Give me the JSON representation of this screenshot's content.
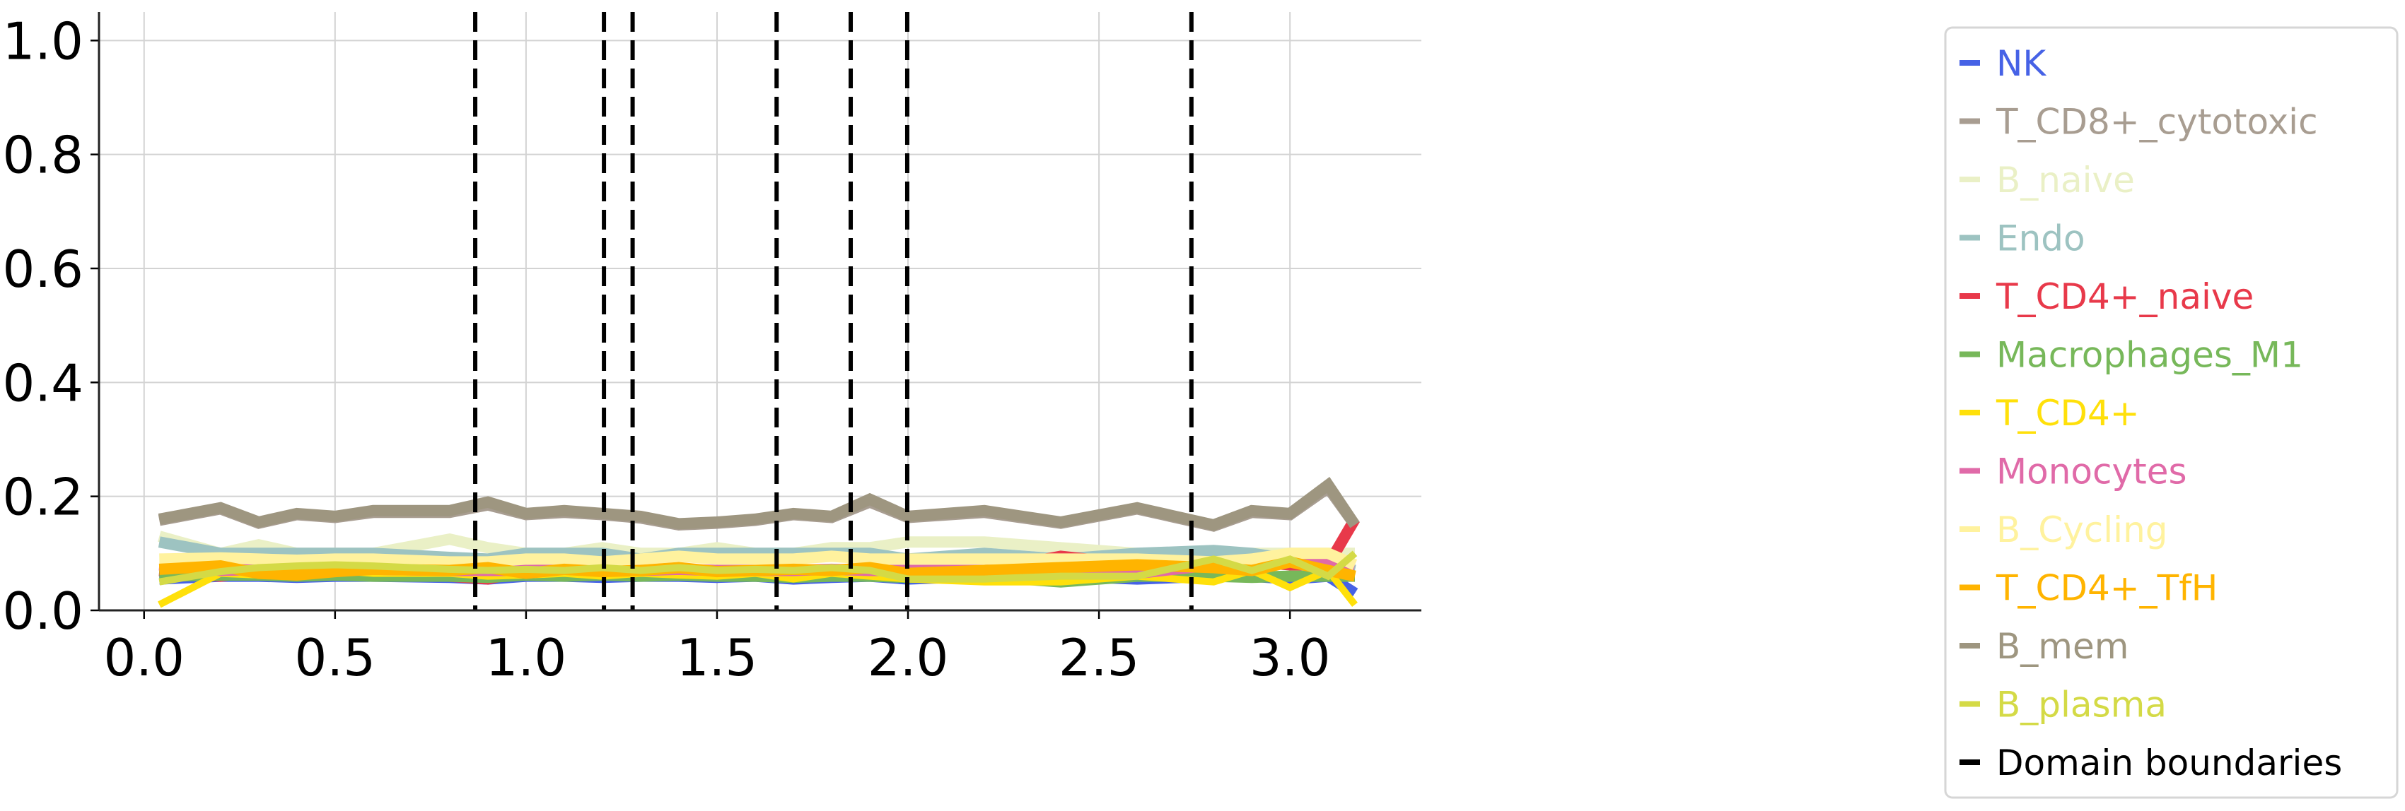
{
  "chart_data": {
    "type": "line",
    "title": "",
    "xlabel": "",
    "ylabel": "",
    "xlim": [
      -0.118,
      3.344
    ],
    "ylim": [
      0,
      1.05
    ],
    "grid": true,
    "legend_placement": "right, outside",
    "x_ticks": [
      "0.0",
      "0.5",
      "1.0",
      "1.5",
      "2.0",
      "2.5",
      "3.0"
    ],
    "y_ticks": [
      "0.0",
      "0.2",
      "0.4",
      "0.6",
      "0.8",
      "1.0"
    ],
    "x": [
      0.04,
      0.2,
      0.3,
      0.4,
      0.5,
      0.6,
      0.8,
      0.9,
      1.0,
      1.1,
      1.2,
      1.3,
      1.4,
      1.5,
      1.6,
      1.7,
      1.8,
      1.9,
      2.0,
      2.2,
      2.4,
      2.6,
      2.8,
      2.9,
      3.0,
      3.1,
      3.17
    ],
    "series": [
      {
        "name": "NK",
        "color": "#4662e6",
        "values": [
          0.055,
          0.06,
          0.06,
          0.058,
          0.06,
          0.06,
          0.058,
          0.055,
          0.06,
          0.06,
          0.058,
          0.06,
          0.06,
          0.058,
          0.06,
          0.055,
          0.058,
          0.06,
          0.055,
          0.06,
          0.06,
          0.055,
          0.06,
          0.06,
          0.055,
          0.06,
          0.03
        ]
      },
      {
        "name": "T_CD8+_cytotoxic",
        "color": "#a89d91",
        "values": [
          0.158,
          0.178,
          0.153,
          0.168,
          0.163,
          0.172,
          0.172,
          0.185,
          0.168,
          0.172,
          0.168,
          0.162,
          0.15,
          0.153,
          0.158,
          0.168,
          0.163,
          0.19,
          0.163,
          0.172,
          0.153,
          0.178,
          0.148,
          0.172,
          0.168,
          0.215,
          0.15
        ]
      },
      {
        "name": "B_naive",
        "color": "#eaf0c6",
        "values": [
          0.13,
          0.1,
          0.115,
          0.1,
          0.1,
          0.1,
          0.125,
          0.11,
          0.1,
          0.1,
          0.11,
          0.1,
          0.1,
          0.11,
          0.1,
          0.1,
          0.11,
          0.11,
          0.12,
          0.12,
          0.11,
          0.1,
          0.1,
          0.1,
          0.1,
          0.1,
          0.1
        ]
      },
      {
        "name": "Endo",
        "color": "#9dc3c1",
        "values": [
          0.12,
          0.1,
          0.1,
          0.1,
          0.1,
          0.1,
          0.093,
          0.09,
          0.1,
          0.1,
          0.1,
          0.09,
          0.1,
          0.1,
          0.1,
          0.1,
          0.1,
          0.1,
          0.09,
          0.1,
          0.09,
          0.1,
          0.105,
          0.1,
          0.09,
          0.08,
          0.07
        ]
      },
      {
        "name": "T_CD4+_naive",
        "color": "#e8394a",
        "values": [
          0.07,
          0.06,
          0.07,
          0.07,
          0.065,
          0.065,
          0.06,
          0.055,
          0.07,
          0.07,
          0.07,
          0.07,
          0.07,
          0.07,
          0.07,
          0.07,
          0.07,
          0.07,
          0.06,
          0.07,
          0.095,
          0.08,
          0.08,
          0.085,
          0.08,
          0.08,
          0.16
        ]
      },
      {
        "name": "Macrophages_M1",
        "color": "#77b85a",
        "values": [
          0.06,
          0.062,
          0.062,
          0.06,
          0.062,
          0.06,
          0.06,
          0.058,
          0.062,
          0.06,
          0.062,
          0.06,
          0.062,
          0.06,
          0.06,
          0.058,
          0.06,
          0.06,
          0.058,
          0.06,
          0.05,
          0.06,
          0.06,
          0.058,
          0.06,
          0.06,
          0.06
        ]
      },
      {
        "name": "T_CD4+",
        "color": "#ffe00a",
        "values": [
          0.01,
          0.065,
          0.062,
          0.065,
          0.07,
          0.065,
          0.065,
          0.06,
          0.062,
          0.065,
          0.06,
          0.065,
          0.062,
          0.06,
          0.065,
          0.055,
          0.065,
          0.06,
          0.055,
          0.05,
          0.05,
          0.06,
          0.05,
          0.07,
          0.04,
          0.07,
          0.01
        ]
      },
      {
        "name": "Monocytes",
        "color": "#e06aa8",
        "values": [
          0.08,
          0.07,
          0.072,
          0.075,
          0.075,
          0.072,
          0.07,
          0.07,
          0.07,
          0.072,
          0.07,
          0.07,
          0.072,
          0.07,
          0.07,
          0.07,
          0.072,
          0.07,
          0.07,
          0.07,
          0.07,
          0.065,
          0.08,
          0.07,
          0.09,
          0.09,
          0.08
        ]
      },
      {
        "name": "B_Cycling",
        "color": "#fff29e",
        "values": [
          0.09,
          0.092,
          0.09,
          0.088,
          0.09,
          0.09,
          0.085,
          0.085,
          0.09,
          0.09,
          0.085,
          0.09,
          0.095,
          0.09,
          0.09,
          0.09,
          0.095,
          0.09,
          0.09,
          0.09,
          0.09,
          0.09,
          0.085,
          0.09,
          0.1,
          0.1,
          0.08
        ]
      },
      {
        "name": "T_CD4+_TfH",
        "color": "#ffb400",
        "values": [
          0.072,
          0.078,
          0.065,
          0.062,
          0.068,
          0.072,
          0.07,
          0.075,
          0.065,
          0.072,
          0.068,
          0.07,
          0.075,
          0.068,
          0.07,
          0.072,
          0.07,
          0.075,
          0.065,
          0.07,
          0.075,
          0.08,
          0.075,
          0.07,
          0.085,
          0.07,
          0.06
        ]
      },
      {
        "name": "B_mem",
        "color": "#9e9680",
        "values": [
          0.16,
          0.18,
          0.155,
          0.17,
          0.165,
          0.175,
          0.175,
          0.19,
          0.17,
          0.175,
          0.17,
          0.165,
          0.152,
          0.155,
          0.16,
          0.17,
          0.165,
          0.195,
          0.165,
          0.175,
          0.155,
          0.18,
          0.15,
          0.175,
          0.17,
          0.22,
          0.15
        ]
      },
      {
        "name": "B_plasma",
        "color": "#d4da46",
        "values": [
          0.05,
          0.068,
          0.075,
          0.078,
          0.08,
          0.078,
          0.072,
          0.07,
          0.072,
          0.07,
          0.075,
          0.07,
          0.075,
          0.07,
          0.072,
          0.07,
          0.075,
          0.07,
          0.055,
          0.055,
          0.06,
          0.06,
          0.09,
          0.07,
          0.09,
          0.06,
          0.1
        ]
      }
    ],
    "vlines": {
      "name": "Domain boundaries",
      "color": "#000000",
      "style": "dashed",
      "x": [
        0.867,
        1.204,
        1.279,
        1.656,
        1.85,
        1.998,
        2.742
      ]
    }
  }
}
